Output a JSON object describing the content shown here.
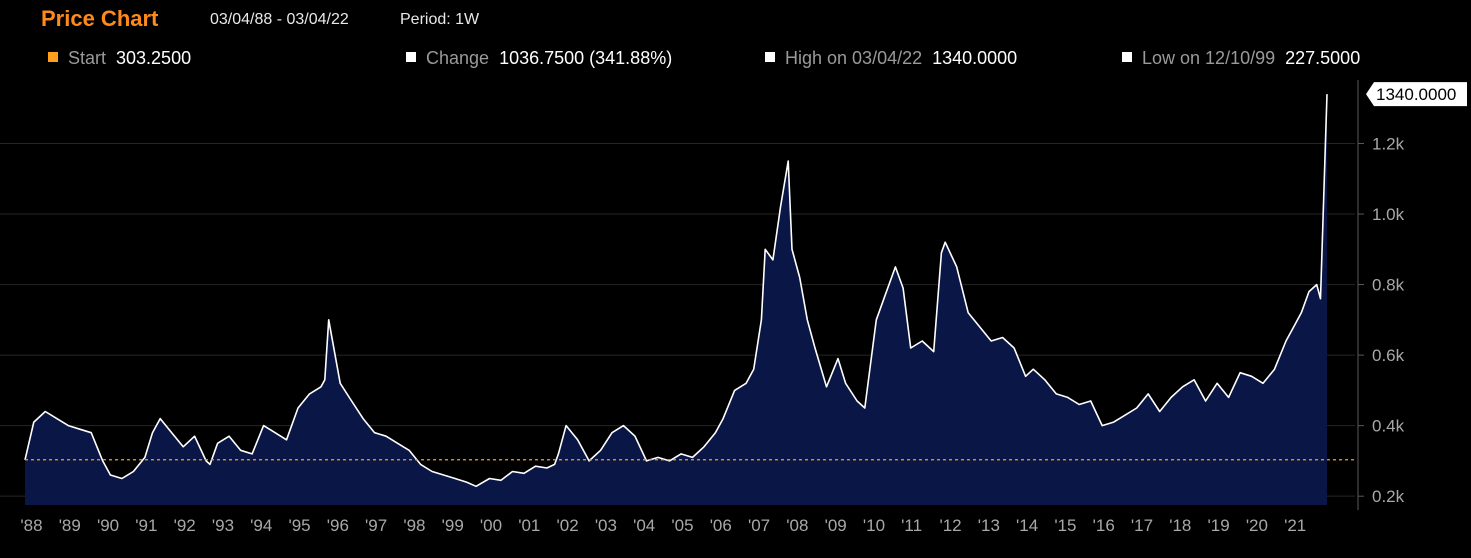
{
  "header": {
    "title": "Price Chart",
    "date_range": "03/04/88 - 03/04/22",
    "period": "Period: 1W"
  },
  "stats": [
    {
      "label": "Start",
      "value": "303.2500",
      "color": "#ff9f1c"
    },
    {
      "label": "Change",
      "value": "1036.7500 (341.88%)",
      "color": "#ffffff"
    },
    {
      "label": "High on 03/04/22",
      "value": "1340.0000",
      "color": "#ffffff"
    },
    {
      "label": "Low on 12/10/99",
      "value": "227.5000",
      "color": "#ffffff"
    }
  ],
  "chart_data": {
    "type": "area",
    "x_labels": [
      "'88",
      "'89",
      "'90",
      "'91",
      "'92",
      "'93",
      "'94",
      "'95",
      "'96",
      "'97",
      "'98",
      "'99",
      "'00",
      "'01",
      "'02",
      "'03",
      "'04",
      "'05",
      "'06",
      "'07",
      "'08",
      "'09",
      "'10",
      "'11",
      "'12",
      "'13",
      "'14",
      "'15",
      "'16",
      "'17",
      "'18",
      "'19",
      "'20",
      "'21"
    ],
    "y_ticks": [
      "0.2k",
      "0.4k",
      "0.6k",
      "0.8k",
      "1.0k",
      "1.2k"
    ],
    "y_tick_values": [
      200,
      400,
      600,
      800,
      1000,
      1200
    ],
    "ylim": [
      175,
      1380
    ],
    "xlim": [
      1988.17,
      2022.17
    ],
    "start_reference": 303.25,
    "last_value_label": "1340.0000",
    "line_color": "#ffffff",
    "fill_color": "#0a1645",
    "reference_color": "#ff9f1c",
    "series": [
      {
        "x": [
          1988.17,
          1988.4,
          1988.7,
          1989.0,
          1989.3,
          1989.6,
          1989.9,
          1990.2,
          1990.4,
          1990.7,
          1991.0,
          1991.3,
          1991.5,
          1991.7,
          1992.0,
          1992.3,
          1992.6,
          1992.9,
          1993.0,
          1993.2,
          1993.5,
          1993.8,
          1994.1,
          1994.4,
          1994.7,
          1995.0,
          1995.3,
          1995.6,
          1995.9,
          1996.0,
          1996.1,
          1996.4,
          1996.7,
          1997.0,
          1997.3,
          1997.6,
          1997.9,
          1998.2,
          1998.5,
          1998.8,
          1999.1,
          1999.4,
          1999.7,
          1999.95,
          2000.3,
          2000.6,
          2000.9,
          2001.2,
          2001.5,
          2001.8,
          2002.0,
          2002.1,
          2002.3,
          2002.6,
          2002.9,
          2003.2,
          2003.5,
          2003.8,
          2004.1,
          2004.4,
          2004.7,
          2005.0,
          2005.3,
          2005.6,
          2005.9,
          2006.2,
          2006.4,
          2006.7,
          2007.0,
          2007.2,
          2007.4,
          2007.5,
          2007.7,
          2007.9,
          2008.1,
          2008.2,
          2008.4,
          2008.6,
          2008.8,
          2009.1,
          2009.4,
          2009.6,
          2009.9,
          2010.1,
          2010.4,
          2010.6,
          2010.9,
          2011.1,
          2011.3,
          2011.6,
          2011.9,
          2012.1,
          2012.2,
          2012.5,
          2012.8,
          2013.1,
          2013.4,
          2013.7,
          2014.0,
          2014.3,
          2014.5,
          2014.8,
          2015.1,
          2015.4,
          2015.7,
          2016.0,
          2016.3,
          2016.6,
          2016.9,
          2017.2,
          2017.5,
          2017.8,
          2018.1,
          2018.4,
          2018.7,
          2019.0,
          2019.3,
          2019.6,
          2019.9,
          2020.2,
          2020.5,
          2020.8,
          2021.1,
          2021.3,
          2021.5,
          2021.7,
          2021.9,
          2022.0,
          2022.1,
          2022.17
        ],
        "y": [
          303,
          410,
          440,
          420,
          400,
          390,
          380,
          300,
          260,
          250,
          270,
          310,
          380,
          420,
          380,
          340,
          370,
          300,
          290,
          350,
          370,
          330,
          320,
          400,
          380,
          360,
          450,
          490,
          510,
          530,
          700,
          520,
          470,
          420,
          380,
          370,
          350,
          330,
          290,
          270,
          260,
          250,
          240,
          228,
          250,
          245,
          270,
          265,
          285,
          280,
          290,
          320,
          400,
          360,
          300,
          330,
          380,
          400,
          370,
          300,
          310,
          300,
          320,
          310,
          340,
          380,
          420,
          500,
          520,
          560,
          700,
          900,
          870,
          1020,
          1150,
          900,
          820,
          700,
          620,
          510,
          590,
          520,
          470,
          450,
          700,
          760,
          850,
          790,
          620,
          640,
          610,
          890,
          920,
          850,
          720,
          680,
          640,
          650,
          620,
          540,
          560,
          530,
          490,
          480,
          460,
          470,
          400,
          410,
          430,
          450,
          490,
          440,
          480,
          510,
          530,
          470,
          520,
          480,
          550,
          540,
          520,
          560,
          640,
          680,
          720,
          780,
          800,
          760,
          1100,
          1340
        ]
      }
    ]
  }
}
